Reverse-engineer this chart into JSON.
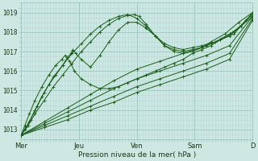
{
  "xlabel": "Pression niveau de la mer( hPa )",
  "background_color": "#cde8e2",
  "plot_bg_color": "#cde8e2",
  "grid_color_major": "#9fc8c0",
  "grid_color_minor": "#b8d9d4",
  "line_color": "#1a5c1a",
  "ylim": [
    1012.5,
    1019.5
  ],
  "xlim": [
    0.0,
    5.0
  ],
  "yticks": [
    1013,
    1014,
    1015,
    1016,
    1017,
    1018,
    1019
  ],
  "xtick_labels": [
    "Mer",
    "Jeu",
    "Ven",
    "Sam",
    "D"
  ],
  "xtick_positions": [
    0.0,
    1.25,
    2.5,
    3.75,
    5.0
  ],
  "vlines": [
    0.0,
    1.25,
    2.5,
    3.75,
    5.0
  ],
  "series": [
    {
      "x": [
        0.0,
        0.08,
        0.18,
        0.3,
        0.45,
        0.6,
        0.75,
        0.9,
        1.0,
        1.08,
        1.12,
        1.18,
        1.3,
        1.5,
        1.7,
        1.9,
        2.1,
        2.3,
        2.5,
        2.7,
        2.9,
        3.1,
        3.3,
        3.5,
        3.7,
        3.9,
        4.1,
        4.3,
        4.6,
        4.85,
        5.0
      ],
      "y": [
        1012.7,
        1013.0,
        1013.4,
        1014.0,
        1014.7,
        1015.3,
        1015.8,
        1016.3,
        1016.7,
        1016.9,
        1017.1,
        1016.9,
        1016.6,
        1016.2,
        1016.8,
        1017.5,
        1018.1,
        1018.5,
        1018.5,
        1018.2,
        1017.8,
        1017.3,
        1017.1,
        1017.0,
        1017.1,
        1017.2,
        1017.4,
        1017.6,
        1017.9,
        1018.6,
        1018.9
      ]
    },
    {
      "x": [
        0.0,
        0.1,
        0.2,
        0.35,
        0.5,
        0.7,
        0.9,
        1.1,
        1.3,
        1.5,
        1.7,
        1.9,
        2.1,
        2.3,
        2.5,
        2.7,
        2.9,
        3.1,
        3.3,
        3.5,
        3.7,
        3.9,
        4.2,
        4.5,
        4.75,
        5.0
      ],
      "y": [
        1012.7,
        1013.1,
        1013.5,
        1014.2,
        1014.9,
        1015.7,
        1016.3,
        1016.9,
        1017.4,
        1017.9,
        1018.3,
        1018.6,
        1018.8,
        1018.9,
        1018.7,
        1018.3,
        1017.8,
        1017.4,
        1017.2,
        1017.1,
        1017.2,
        1017.3,
        1017.5,
        1017.9,
        1018.3,
        1019.0
      ]
    },
    {
      "x": [
        0.0,
        0.5,
        1.0,
        1.5,
        2.0,
        2.5,
        3.0,
        3.5,
        4.0,
        4.5,
        5.0
      ],
      "y": [
        1012.7,
        1013.4,
        1014.1,
        1014.8,
        1015.5,
        1016.1,
        1016.5,
        1016.9,
        1017.3,
        1017.8,
        1018.9
      ]
    },
    {
      "x": [
        0.0,
        0.5,
        1.0,
        1.5,
        2.0,
        2.5,
        3.0,
        3.5,
        4.0,
        4.5,
        5.0
      ],
      "y": [
        1012.7,
        1013.3,
        1013.9,
        1014.5,
        1015.1,
        1015.6,
        1016.0,
        1016.4,
        1016.8,
        1017.3,
        1018.8
      ]
    },
    {
      "x": [
        0.0,
        0.5,
        1.0,
        1.5,
        2.0,
        2.5,
        3.0,
        3.5,
        4.0,
        4.5,
        5.0
      ],
      "y": [
        1012.7,
        1013.2,
        1013.7,
        1014.2,
        1014.7,
        1015.2,
        1015.6,
        1016.0,
        1016.4,
        1016.9,
        1018.7
      ]
    },
    {
      "x": [
        0.0,
        0.5,
        1.0,
        1.5,
        2.0,
        2.5,
        3.0,
        3.5,
        4.0,
        4.5,
        5.0
      ],
      "y": [
        1012.7,
        1013.1,
        1013.5,
        1014.0,
        1014.4,
        1014.9,
        1015.3,
        1015.7,
        1016.1,
        1016.6,
        1018.6
      ]
    },
    {
      "x": [
        0.0,
        0.08,
        0.18,
        0.3,
        0.45,
        0.6,
        0.75,
        0.88,
        0.95,
        1.05,
        1.15,
        1.3,
        1.5,
        1.7,
        1.9,
        2.1,
        2.3,
        2.5,
        2.7,
        2.9,
        3.1,
        3.3,
        3.5,
        3.7,
        3.9,
        4.1,
        4.3,
        4.6,
        5.0
      ],
      "y": [
        1012.7,
        1013.2,
        1013.8,
        1014.5,
        1015.2,
        1015.8,
        1016.3,
        1016.6,
        1016.8,
        1016.5,
        1016.0,
        1015.6,
        1015.3,
        1015.1,
        1015.1,
        1015.2,
        1015.4,
        1015.6,
        1015.8,
        1016.0,
        1016.2,
        1016.4,
        1016.6,
        1016.9,
        1017.1,
        1017.3,
        1017.6,
        1018.0,
        1018.8
      ]
    },
    {
      "x": [
        0.0,
        0.15,
        0.3,
        0.5,
        0.7,
        0.9,
        1.1,
        1.3,
        1.5,
        1.7,
        1.9,
        2.1,
        2.3,
        2.45,
        2.55,
        2.7,
        2.9,
        3.1,
        3.3,
        3.5,
        3.7,
        3.9,
        4.1,
        4.4,
        4.7,
        5.0
      ],
      "y": [
        1012.7,
        1013.2,
        1013.8,
        1014.5,
        1015.2,
        1015.8,
        1016.4,
        1017.0,
        1017.5,
        1018.0,
        1018.4,
        1018.7,
        1018.85,
        1018.9,
        1018.8,
        1018.4,
        1017.8,
        1017.3,
        1017.0,
        1016.9,
        1017.0,
        1017.2,
        1017.5,
        1017.9,
        1018.5,
        1019.0
      ]
    }
  ]
}
